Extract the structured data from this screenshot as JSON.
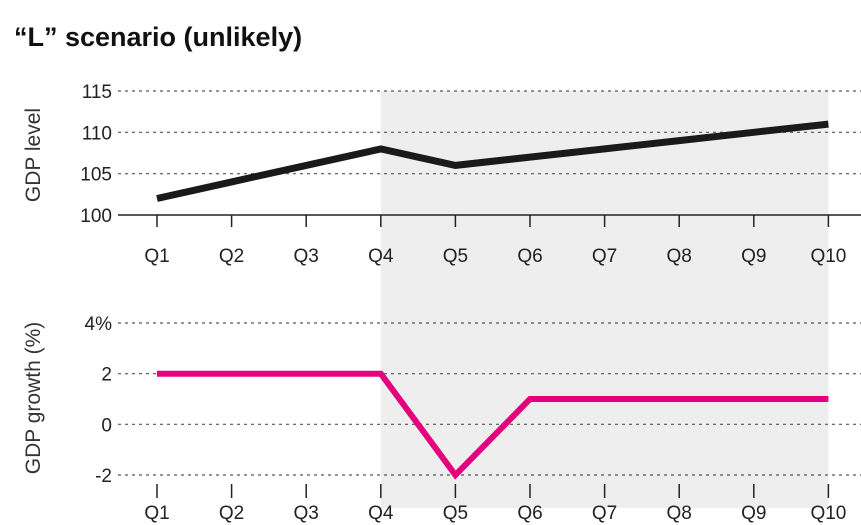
{
  "title": "“L” scenario (unlikely)",
  "colors": {
    "shade": "#eeeeee",
    "level_line": "#1a1a1a",
    "growth_line": "#e5007e"
  },
  "chart_data": [
    {
      "type": "line",
      "categories": [
        "Q1",
        "Q2",
        "Q3",
        "Q4",
        "Q5",
        "Q6",
        "Q7",
        "Q8",
        "Q9",
        "Q10"
      ],
      "series": [
        {
          "values": [
            102,
            104,
            106,
            108,
            106,
            107,
            108,
            109,
            110,
            111
          ]
        }
      ],
      "ylabel": "GDP level",
      "ylim": [
        100,
        115
      ],
      "yticks": [
        "100",
        "105",
        "110",
        "115"
      ],
      "shaded_from": "Q4",
      "shaded_to": "Q10",
      "grid": true
    },
    {
      "type": "line",
      "categories": [
        "Q1",
        "Q2",
        "Q3",
        "Q4",
        "Q5",
        "Q6",
        "Q7",
        "Q8",
        "Q9",
        "Q10"
      ],
      "series": [
        {
          "values": [
            2,
            2,
            2,
            2,
            -2,
            1,
            1,
            1,
            1,
            1
          ]
        }
      ],
      "ylabel": "GDP growth (%)",
      "ylim": [
        -2,
        4
      ],
      "yticks": [
        "-2",
        "0",
        "2",
        "4%"
      ],
      "shaded_from": "Q4",
      "shaded_to": "Q10",
      "grid": true
    }
  ]
}
